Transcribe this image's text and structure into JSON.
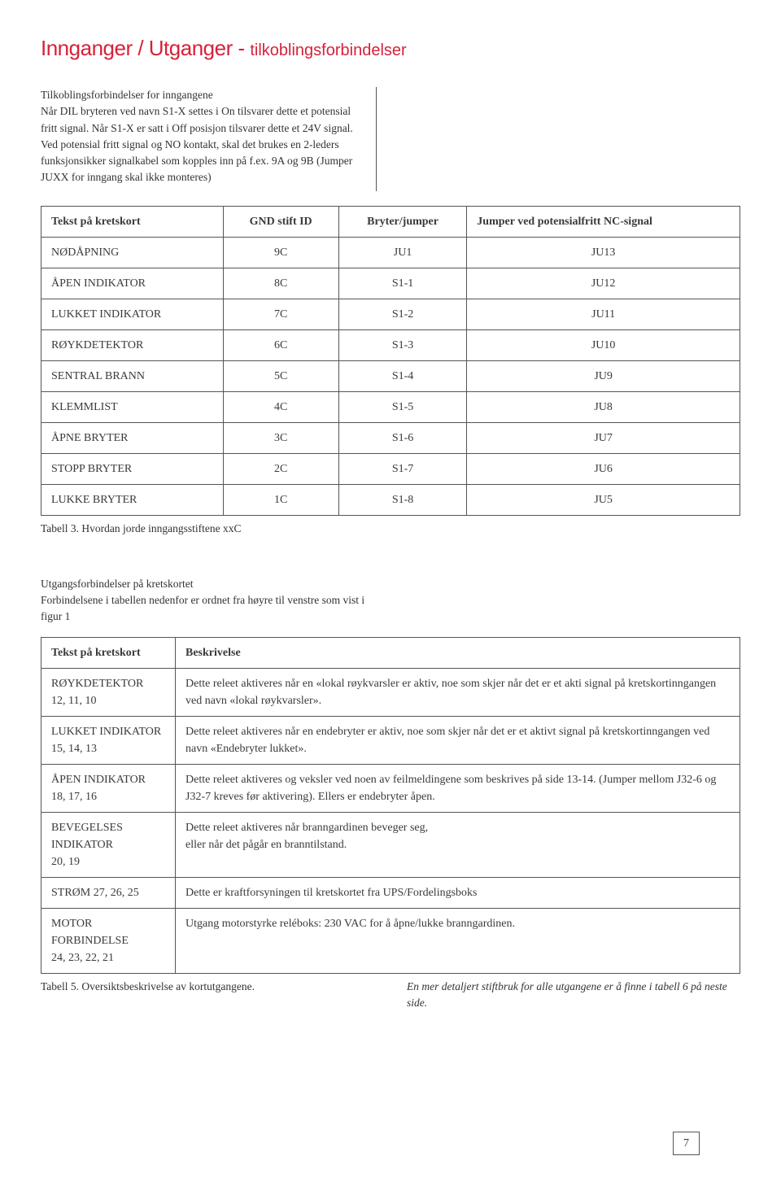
{
  "title": {
    "main": "Innganger / Utganger",
    "separator": " - ",
    "sub": "tilkoblingsforbindelser"
  },
  "intro": {
    "heading": "Tilkoblingsforbindelser for inngangene",
    "body": "Når DIL bryteren ved navn S1-X settes i On tilsvarer dette et potensial fritt signal. Når S1-X er satt i Off posisjon tilsvarer dette et 24V signal. Ved potensial fritt signal og NO kontakt, skal det brukes en 2-leders funksjonsikker signalkabel som kopples inn på f.ex. 9A og 9B (Jumper JUXX for inngang skal ikke monteres)"
  },
  "table1": {
    "headers": [
      "Tekst på kretskort",
      "GND stift ID",
      "Bryter/jumper",
      "Jumper ved potensialfritt NC-signal"
    ],
    "rows": [
      [
        "NØDÅPNING",
        "9C",
        "JU1",
        "JU13"
      ],
      [
        "ÅPEN INDIKATOR",
        "8C",
        "S1-1",
        "JU12"
      ],
      [
        "LUKKET INDIKATOR",
        "7C",
        "S1-2",
        "JU11"
      ],
      [
        "RØYKDETEKTOR",
        "6C",
        "S1-3",
        "JU10"
      ],
      [
        "SENTRAL BRANN",
        "5C",
        "S1-4",
        "JU9"
      ],
      [
        " KLEMMLIST",
        "4C",
        "S1-5",
        "JU8"
      ],
      [
        "ÅPNE BRYTER",
        "3C",
        "S1-6",
        "JU7"
      ],
      [
        "STOPP BRYTER",
        "2C",
        "S1-7",
        "JU6"
      ],
      [
        "LUKKE BRYTER",
        "1C",
        "S1-8",
        "JU5"
      ]
    ],
    "caption": "Tabell 3. Hvordan jorde inngangsstiftene xxC"
  },
  "outputs_intro": {
    "heading": "Utgangsforbindelser på kretskortet",
    "body": "Forbindelsene i tabellen nedenfor er ordnet fra høyre til venstre som vist i figur 1"
  },
  "table2": {
    "headers": [
      "Tekst på kretskort",
      "Beskrivelse"
    ],
    "rows": [
      {
        "label": "RØYKDETEKTOR",
        "nums": "12, 11, 10",
        "desc": "Dette releet aktiveres når en «lokal røykvarsler er aktiv, noe som skjer når det er et akti signal på kretskortinngangen ved navn «lokal røykvarsler»."
      },
      {
        "label": "LUKKET INDIKATOR",
        "nums": "15, 14, 13",
        "desc": "Dette releet aktiveres når en endebryter er aktiv, noe som skjer når det er et aktivt signal på kretskortinngangen ved navn «Endebryter lukket»."
      },
      {
        "label": "ÅPEN INDIKATOR",
        "nums": "18, 17, 16",
        "desc": "Dette releet aktiveres og veksler ved noen av feilmeldingene som beskrives på side 13-14. (Jumper mellom J32-6 og J32-7 kreves før aktivering). Ellers er endebryter åpen."
      },
      {
        "label": "BEVEGELSES INDIKATOR",
        "nums": "20, 19",
        "desc": "Dette releet aktiveres når branngardinen beveger seg,\neller når det pågår en branntilstand."
      },
      {
        "label": "STRØM 27, 26, 25",
        "nums": "",
        "desc": "Dette er kraftforsyningen til kretskortet fra UPS/Fordelingsboks"
      },
      {
        "label": "MOTOR FORBINDELSE",
        "nums": "24, 23, 22, 21",
        "desc": "Utgang motorstyrke reléboks: 230 VAC for å åpne/lukke branngardinen."
      }
    ],
    "caption_left": "Tabell 5. Oversiktsbeskrivelse av kortutgangene.",
    "caption_right": "En mer detaljert stiftbruk for alle utgangene er å finne i tabell 6 på neste side."
  },
  "page_number": "7"
}
